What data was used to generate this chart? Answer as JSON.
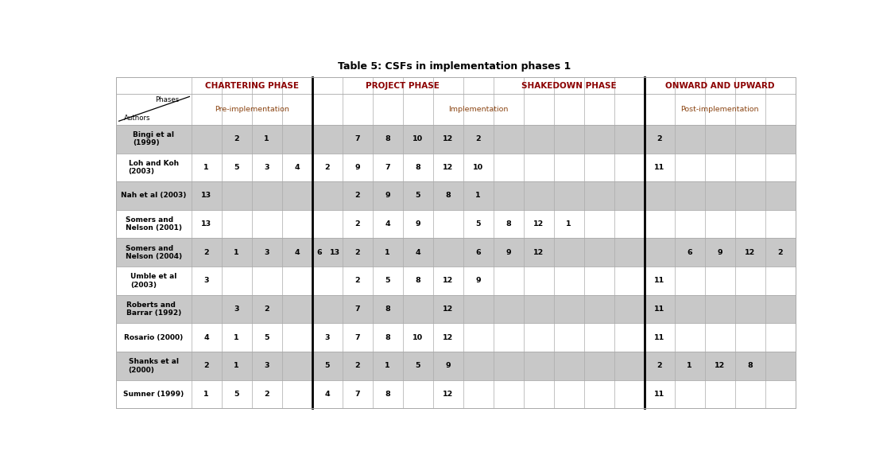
{
  "title": "Table 5: CSFs in implementation phases 1",
  "phase_headers": [
    {
      "label": "CHARTERING PHASE",
      "cs": 1,
      "ce": 5
    },
    {
      "label": "PROJECT PHASE",
      "cs": 5,
      "ce": 11
    },
    {
      "label": "SHAKEDOWN PHASE",
      "cs": 11,
      "ce": 16
    },
    {
      "label": "ONWARD AND UPWARD",
      "cs": 16,
      "ce": 21
    }
  ],
  "sub_headers": [
    {
      "label": "Pre-implementation",
      "cs": 1,
      "ce": 5
    },
    {
      "label": "Implementation",
      "cs": 5,
      "ce": 16
    },
    {
      "label": "Post-implementation",
      "cs": 16,
      "ce": 21
    }
  ],
  "thick_vlines_cols": [
    5,
    16
  ],
  "col_widths": [
    1.8,
    0.72,
    0.72,
    0.72,
    0.72,
    0.72,
    0.72,
    0.72,
    0.72,
    0.72,
    0.72,
    0.72,
    0.72,
    0.72,
    0.72,
    0.72,
    0.72,
    0.72,
    0.72,
    0.72,
    0.72
  ],
  "row_data": [
    {
      "author": "Bingi et al\n(1999)",
      "cells": [
        [
          2,
          "2"
        ],
        [
          3,
          "1"
        ],
        [
          6,
          "7"
        ],
        [
          7,
          "8"
        ],
        [
          8,
          "10"
        ],
        [
          9,
          "12"
        ],
        [
          10,
          "2"
        ],
        [
          16,
          "2"
        ]
      ]
    },
    {
      "author": "Loh and Koh\n(2003)",
      "cells": [
        [
          1,
          "1"
        ],
        [
          2,
          "5"
        ],
        [
          3,
          "3"
        ],
        [
          4,
          "4"
        ],
        [
          5,
          "2"
        ],
        [
          6,
          "9"
        ],
        [
          7,
          "7"
        ],
        [
          8,
          "8"
        ],
        [
          9,
          "12"
        ],
        [
          10,
          "10"
        ],
        [
          16,
          "11"
        ]
      ]
    },
    {
      "author": "Nah et al (2003)",
      "cells": [
        [
          1,
          "13"
        ],
        [
          6,
          "2"
        ],
        [
          7,
          "9"
        ],
        [
          8,
          "5"
        ],
        [
          9,
          "8"
        ],
        [
          10,
          "1"
        ]
      ]
    },
    {
      "author": "Somers and\nNelson (2001)",
      "cells": [
        [
          1,
          "13"
        ],
        [
          6,
          "2"
        ],
        [
          7,
          "4"
        ],
        [
          8,
          "9"
        ],
        [
          10,
          "5"
        ],
        [
          11,
          "8"
        ],
        [
          12,
          "12"
        ],
        [
          13,
          "1"
        ]
      ]
    },
    {
      "author": "Somers and\nNelson (2004)",
      "cells": [
        [
          1,
          "2"
        ],
        [
          2,
          "1"
        ],
        [
          3,
          "3"
        ],
        [
          4,
          "4"
        ],
        [
          5,
          "6"
        ],
        [
          5,
          "13"
        ],
        [
          6,
          "2"
        ],
        [
          7,
          "1"
        ],
        [
          8,
          "4"
        ],
        [
          10,
          "6"
        ],
        [
          11,
          "9"
        ],
        [
          12,
          "12"
        ],
        [
          17,
          "6"
        ],
        [
          18,
          "9"
        ],
        [
          19,
          "12"
        ],
        [
          20,
          "2"
        ]
      ]
    },
    {
      "author": "Umble et al\n(2003)",
      "cells": [
        [
          1,
          "3"
        ],
        [
          6,
          "2"
        ],
        [
          7,
          "5"
        ],
        [
          8,
          "8"
        ],
        [
          9,
          "12"
        ],
        [
          10,
          "9"
        ],
        [
          16,
          "11"
        ]
      ]
    },
    {
      "author": "Roberts and\nBarrar (1992)",
      "cells": [
        [
          2,
          "3"
        ],
        [
          3,
          "2"
        ],
        [
          6,
          "7"
        ],
        [
          7,
          "8"
        ],
        [
          9,
          "12"
        ],
        [
          16,
          "11"
        ]
      ]
    },
    {
      "author": "Rosario (2000)",
      "cells": [
        [
          1,
          "4"
        ],
        [
          2,
          "1"
        ],
        [
          3,
          "5"
        ],
        [
          5,
          "3"
        ],
        [
          6,
          "7"
        ],
        [
          7,
          "8"
        ],
        [
          8,
          "10"
        ],
        [
          9,
          "12"
        ],
        [
          16,
          "11"
        ]
      ]
    },
    {
      "author": "Shanks et al\n(2000)",
      "cells": [
        [
          1,
          "2"
        ],
        [
          2,
          "1"
        ],
        [
          3,
          "3"
        ],
        [
          5,
          "5"
        ],
        [
          6,
          "2"
        ],
        [
          7,
          "1"
        ],
        [
          8,
          "5"
        ],
        [
          9,
          "9"
        ],
        [
          16,
          "2"
        ],
        [
          17,
          "1"
        ],
        [
          18,
          "12"
        ],
        [
          19,
          "8"
        ]
      ]
    },
    {
      "author": "Sumner (1999)",
      "cells": [
        [
          1,
          "1"
        ],
        [
          2,
          "5"
        ],
        [
          3,
          "2"
        ],
        [
          5,
          "4"
        ],
        [
          6,
          "7"
        ],
        [
          7,
          "8"
        ],
        [
          9,
          "12"
        ],
        [
          16,
          "11"
        ]
      ]
    }
  ],
  "row_colors": [
    "#c8c8c8",
    "#ffffff",
    "#c8c8c8",
    "#ffffff",
    "#c8c8c8",
    "#ffffff",
    "#c8c8c8",
    "#ffffff",
    "#c8c8c8",
    "#ffffff"
  ],
  "phase_color": "#8B0000",
  "sub_color": "#8B4513",
  "grid_color": "#aaaaaa",
  "thick_color": "#000000",
  "ph_fs": 7.5,
  "sh_fs": 6.8,
  "au_fs": 6.5,
  "val_fs": 6.8
}
